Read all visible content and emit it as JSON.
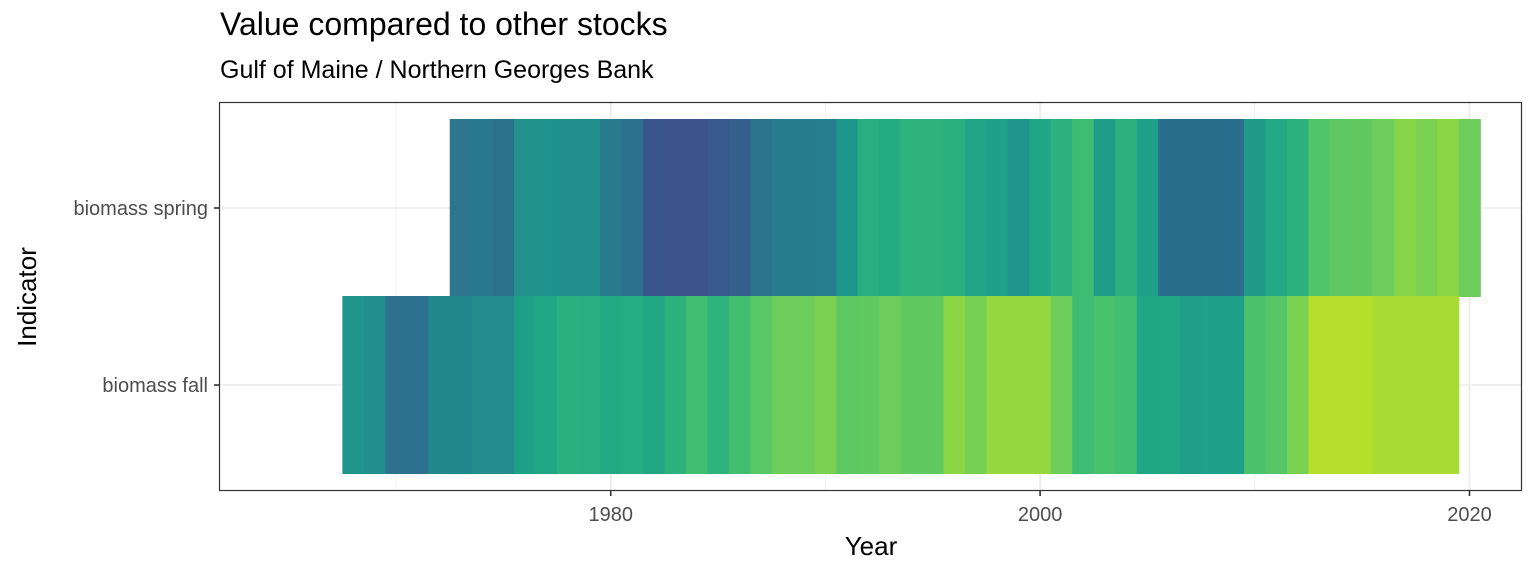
{
  "header": {
    "title": "Value compared to other stocks",
    "subtitle": "Gulf of Maine / Northern Georges Bank"
  },
  "chart_data": {
    "type": "heatmap",
    "title": "Value compared to other stocks",
    "subtitle": "Gulf of Maine / Northern Georges Bank",
    "xlabel": "Year",
    "ylabel": "Indicator",
    "xlim": [
      1961.8,
      2022.4
    ],
    "x_ticks": [
      1980,
      2000,
      2020
    ],
    "x_minor_ticks": [
      1970,
      1990,
      2010
    ],
    "grid": true,
    "legend": "none",
    "rows": [
      "biomass spring",
      "biomass fall"
    ],
    "series": [
      {
        "name": "biomass spring",
        "years": [
          1973,
          1974,
          1975,
          1976,
          1977,
          1978,
          1979,
          1980,
          1981,
          1982,
          1983,
          1984,
          1985,
          1986,
          1987,
          1988,
          1989,
          1990,
          1991,
          1992,
          1993,
          1994,
          1995,
          1996,
          1997,
          1998,
          1999,
          2000,
          2001,
          2002,
          2003,
          2004,
          2005,
          2006,
          2007,
          2008,
          2009,
          2010,
          2011,
          2012,
          2013,
          2014,
          2015,
          2016,
          2017,
          2018,
          2019,
          2020
        ],
        "colors": [
          "#2e758e",
          "#2a788e",
          "#2c7089",
          "#21918c",
          "#20928c",
          "#21908d",
          "#218f8d",
          "#2a7b8e",
          "#2c728e",
          "#3a548c",
          "#3b528b",
          "#3b528b",
          "#38598c",
          "#355f8d",
          "#2c738e",
          "#297b8e",
          "#297b8e",
          "#267f8e",
          "#1f968b",
          "#28ae80",
          "#25ab82",
          "#2eb37c",
          "#2eb37c",
          "#2ab07f",
          "#20a386",
          "#1fa088",
          "#1f958b",
          "#21a685",
          "#2db27d",
          "#3fbc73",
          "#1e9e89",
          "#2cb17e",
          "#1fa088",
          "#2a6e8e",
          "#2a6e8e",
          "#2a6e8e",
          "#2a6e8e",
          "#1f9a8a",
          "#23a983",
          "#2db27d",
          "#52c569",
          "#5ec962",
          "#60ca60",
          "#6ccd5a",
          "#86d549",
          "#7ad151",
          "#8bd646",
          "#6ccd5a"
        ]
      },
      {
        "name": "biomass fall",
        "years": [
          1968,
          1969,
          1970,
          1971,
          1972,
          1973,
          1974,
          1975,
          1976,
          1977,
          1978,
          1979,
          1980,
          1981,
          1982,
          1983,
          1984,
          1985,
          1986,
          1987,
          1988,
          1989,
          1990,
          1991,
          1992,
          1993,
          1994,
          1995,
          1996,
          1997,
          1998,
          1999,
          2000,
          2001,
          2002,
          2003,
          2004,
          2005,
          2006,
          2007,
          2008,
          2009,
          2010,
          2011,
          2012,
          2013,
          2014,
          2015,
          2016,
          2017,
          2018,
          2019
        ],
        "colors": [
          "#1f958b",
          "#21908d",
          "#2d718e",
          "#2d718e",
          "#23888e",
          "#23888e",
          "#228b8d",
          "#228b8d",
          "#1fa187",
          "#22a785",
          "#2ab07f",
          "#28ae80",
          "#24aa83",
          "#26ad81",
          "#22a785",
          "#2db27d",
          "#42be71",
          "#2eb37c",
          "#42be71",
          "#58c765",
          "#6ccd5a",
          "#6ccd5a",
          "#7ad151",
          "#5ec962",
          "#60ca60",
          "#6ccd5a",
          "#60ca60",
          "#60ca60",
          "#8bd646",
          "#75d054",
          "#95d840",
          "#95d840",
          "#95d840",
          "#6ccd5a",
          "#3fbc73",
          "#4ac16d",
          "#42be71",
          "#21a685",
          "#22a785",
          "#1f9e89",
          "#1fa088",
          "#1fa088",
          "#4ac16d",
          "#56c667",
          "#7ad151",
          "#b5de2b",
          "#b5de2b",
          "#b5de2b",
          "#a8db34",
          "#a8db34",
          "#a8db34",
          "#a8db34"
        ]
      }
    ]
  }
}
